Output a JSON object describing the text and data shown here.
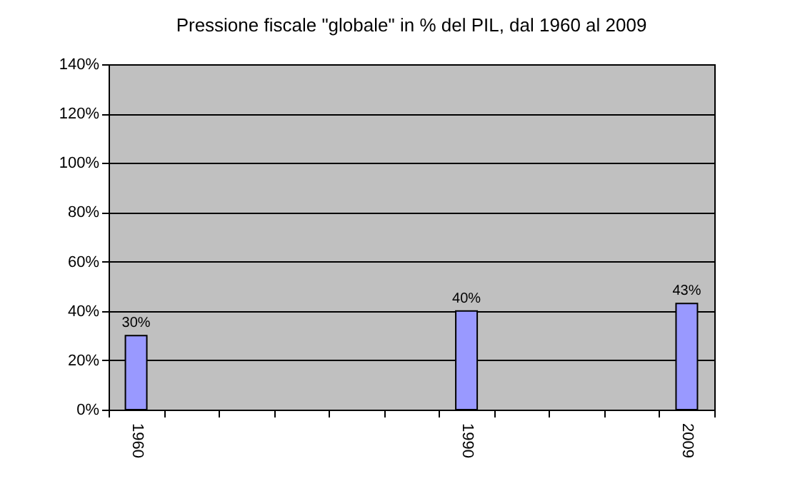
{
  "chart_data": {
    "type": "bar",
    "title": "Pressione fiscale \"globale\" in % del PIL, dal 1960 al 2009",
    "categories": [
      "1960",
      null,
      null,
      null,
      null,
      null,
      "1990",
      null,
      null,
      null,
      "2009"
    ],
    "values": [
      30,
      null,
      null,
      null,
      null,
      null,
      40,
      null,
      null,
      null,
      43
    ],
    "color": "#9999ff",
    "ylim": [
      0,
      140
    ],
    "yticks": [
      {
        "value": 0,
        "label": "0%"
      },
      {
        "value": 20,
        "label": "20%"
      },
      {
        "value": 40,
        "label": "40%"
      },
      {
        "value": 60,
        "label": "60%"
      },
      {
        "value": 80,
        "label": "80%"
      },
      {
        "value": 100,
        "label": "100%"
      },
      {
        "value": 120,
        "label": "120%"
      },
      {
        "value": 140,
        "label": "140%"
      }
    ],
    "value_labels": [
      "30%",
      null,
      null,
      null,
      null,
      null,
      "40%",
      null,
      null,
      null,
      "43%"
    ],
    "grid": "y"
  }
}
